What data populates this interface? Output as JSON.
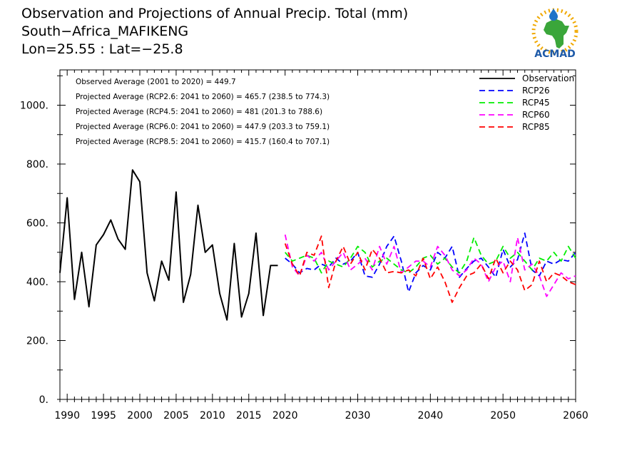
{
  "header": {
    "line1": "Observation and Projections of Annual Precip. Total (mm)",
    "line2": "South−Africa_MAFIKENG",
    "line3": "Lon=25.55 : Lat=−25.8"
  },
  "logo": {
    "text": "ACMAD",
    "icon": "africa-map-icon"
  },
  "chart_data": {
    "type": "line",
    "title": "Observation and Projections of Annual Precip. Total (mm)",
    "xlim": [
      1989,
      2060
    ],
    "ylim": [
      0,
      1120
    ],
    "grid": false,
    "legend_placement": "top-right",
    "yticks": [
      {
        "value": 0,
        "label": "0."
      },
      {
        "value": 200,
        "label": "200."
      },
      {
        "value": 400,
        "label": "400."
      },
      {
        "value": 600,
        "label": "600."
      },
      {
        "value": 800,
        "label": "800."
      },
      {
        "value": 1000,
        "label": "1000."
      }
    ],
    "xticks": [
      {
        "value": 1990,
        "label": "1990"
      },
      {
        "value": 1995,
        "label": "1995"
      },
      {
        "value": 2000,
        "label": "2000"
      },
      {
        "value": 2005,
        "label": "2005"
      },
      {
        "value": 2010,
        "label": "2010"
      },
      {
        "value": 2015,
        "label": "2015"
      },
      {
        "value": 2020,
        "label": "2020"
      },
      {
        "value": 2030,
        "label": "2030"
      },
      {
        "value": 2040,
        "label": "2040"
      },
      {
        "value": 2050,
        "label": "2050"
      },
      {
        "value": 2060,
        "label": "2060"
      }
    ],
    "annotations": [
      "Observed Average (2001 to 2020) = 449.7",
      "Projected Average (RCP2.6: 2041 to 2060) = 465.7 (238.5 to 774.3)",
      "Projected Average (RCP4.5: 2041 to 2060) = 481 (201.3 to 788.6)",
      "Projected Average (RCP6.0: 2041 to 2060) = 447.9 (203.3 to 759.1)",
      "Projected Average (RCP8.5: 2041 to 2060) = 415.7 (160.4 to 707.1)"
    ],
    "series": [
      {
        "name": "Observation",
        "color": "#000000",
        "dashed": false,
        "x": [
          1989,
          1990,
          1991,
          1992,
          1993,
          1994,
          1995,
          1996,
          1997,
          1998,
          1999,
          2000,
          2001,
          2002,
          2003,
          2004,
          2005,
          2006,
          2007,
          2008,
          2009,
          2010,
          2011,
          2012,
          2013,
          2014,
          2015,
          2016,
          2017,
          2018,
          2019
        ],
        "values": [
          430,
          685,
          340,
          500,
          315,
          525,
          560,
          610,
          545,
          510,
          780,
          740,
          430,
          335,
          470,
          405,
          705,
          330,
          425,
          660,
          500,
          525,
          360,
          270,
          530,
          280,
          360,
          565,
          285,
          455,
          455
        ]
      },
      {
        "name": "RCP26",
        "color": "#0000ff",
        "dashed": true,
        "x": [
          2020,
          2021,
          2022,
          2023,
          2024,
          2025,
          2026,
          2027,
          2028,
          2029,
          2030,
          2031,
          2032,
          2033,
          2034,
          2035,
          2036,
          2037,
          2038,
          2039,
          2040,
          2041,
          2042,
          2043,
          2044,
          2045,
          2046,
          2047,
          2048,
          2049,
          2050,
          2051,
          2052,
          2053,
          2054,
          2055,
          2056,
          2057,
          2058,
          2059,
          2060
        ],
        "values": [
          480,
          460,
          430,
          445,
          440,
          460,
          450,
          480,
          460,
          470,
          500,
          420,
          415,
          460,
          520,
          555,
          470,
          365,
          430,
          455,
          440,
          500,
          480,
          520,
          415,
          445,
          470,
          480,
          450,
          415,
          510,
          450,
          475,
          565,
          440,
          420,
          470,
          460,
          475,
          470,
          500
        ]
      },
      {
        "name": "RCP45",
        "color": "#00ee00",
        "dashed": true,
        "x": [
          2020,
          2021,
          2022,
          2023,
          2024,
          2025,
          2026,
          2027,
          2028,
          2029,
          2030,
          2031,
          2032,
          2033,
          2034,
          2035,
          2036,
          2037,
          2038,
          2039,
          2040,
          2041,
          2042,
          2043,
          2044,
          2045,
          2046,
          2047,
          2048,
          2049,
          2050,
          2051,
          2052,
          2053,
          2054,
          2055,
          2056,
          2057,
          2058,
          2059,
          2060
        ],
        "values": [
          500,
          470,
          480,
          490,
          480,
          430,
          470,
          460,
          450,
          480,
          520,
          500,
          450,
          470,
          480,
          460,
          440,
          430,
          450,
          480,
          490,
          460,
          480,
          450,
          430,
          470,
          550,
          490,
          460,
          470,
          520,
          480,
          500,
          470,
          440,
          480,
          470,
          500,
          470,
          520,
          480
        ]
      },
      {
        "name": "RCP60",
        "color": "#ff00ff",
        "dashed": true,
        "x": [
          2020,
          2021,
          2022,
          2023,
          2024,
          2025,
          2026,
          2027,
          2028,
          2029,
          2030,
          2031,
          2032,
          2033,
          2034,
          2035,
          2036,
          2037,
          2038,
          2039,
          2040,
          2041,
          2042,
          2043,
          2044,
          2045,
          2046,
          2047,
          2048,
          2049,
          2050,
          2051,
          2052,
          2053,
          2054,
          2055,
          2056,
          2057,
          2058,
          2059,
          2060
        ],
        "values": [
          560,
          450,
          420,
          490,
          470,
          500,
          440,
          470,
          500,
          440,
          460,
          480,
          440,
          520,
          460,
          520,
          430,
          450,
          470,
          470,
          450,
          520,
          490,
          440,
          420,
          440,
          480,
          460,
          400,
          450,
          470,
          400,
          550,
          440,
          460,
          420,
          350,
          390,
          430,
          410,
          420
        ]
      },
      {
        "name": "RCP85",
        "color": "#ff0000",
        "dashed": true,
        "x": [
          2020,
          2021,
          2022,
          2023,
          2024,
          2025,
          2026,
          2027,
          2028,
          2029,
          2030,
          2031,
          2032,
          2033,
          2034,
          2035,
          2036,
          2037,
          2038,
          2039,
          2040,
          2041,
          2042,
          2043,
          2044,
          2045,
          2046,
          2047,
          2048,
          2049,
          2050,
          2051,
          2052,
          2053,
          2054,
          2055,
          2056,
          2057,
          2058,
          2059,
          2060
        ],
        "values": [
          530,
          460,
          420,
          500,
          490,
          555,
          380,
          470,
          520,
          460,
          500,
          440,
          510,
          480,
          430,
          435,
          430,
          440,
          420,
          480,
          410,
          450,
          400,
          330,
          380,
          420,
          430,
          460,
          410,
          480,
          430,
          470,
          440,
          370,
          390,
          470,
          400,
          430,
          420,
          400,
          390
        ]
      }
    ]
  }
}
